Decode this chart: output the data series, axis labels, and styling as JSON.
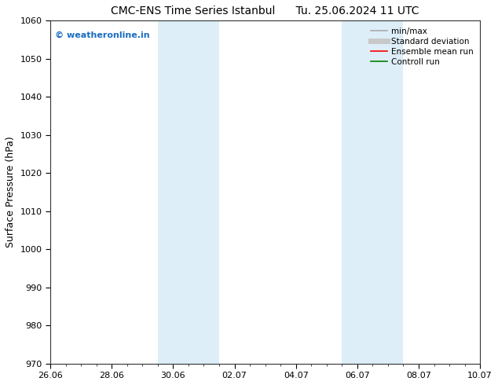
{
  "title_left": "CMC-ENS Time Series Istanbul",
  "title_right": "Tu. 25.06.2024 11 UTC",
  "ylabel": "Surface Pressure (hPa)",
  "ylim": [
    970,
    1060
  ],
  "yticks": [
    970,
    980,
    990,
    1000,
    1010,
    1020,
    1030,
    1040,
    1050,
    1060
  ],
  "xlim": [
    0,
    14
  ],
  "xtick_labels": [
    "26.06",
    "28.06",
    "30.06",
    "02.07",
    "04.07",
    "06.07",
    "08.07",
    "10.07"
  ],
  "xtick_positions": [
    0,
    2,
    4,
    6,
    8,
    10,
    12,
    14
  ],
  "shaded_regions": [
    {
      "x_start": 3.5,
      "x_end": 5.5,
      "color": "#ddeef8"
    },
    {
      "x_start": 9.5,
      "x_end": 11.5,
      "color": "#ddeef8"
    }
  ],
  "background_color": "#ffffff",
  "watermark_text": "© weatheronline.in",
  "watermark_color": "#1a6dc1",
  "watermark_fontsize": 8,
  "legend_items": [
    {
      "label": "min/max",
      "color": "#aaaaaa",
      "lw": 1.2
    },
    {
      "label": "Standard deviation",
      "color": "#c8c8c8",
      "lw": 5
    },
    {
      "label": "Ensemble mean run",
      "color": "#ff0000",
      "lw": 1.2
    },
    {
      "label": "Controll run",
      "color": "#008000",
      "lw": 1.2
    }
  ],
  "title_fontsize": 10,
  "tick_label_fontsize": 8,
  "axis_label_fontsize": 9,
  "legend_fontsize": 7.5
}
